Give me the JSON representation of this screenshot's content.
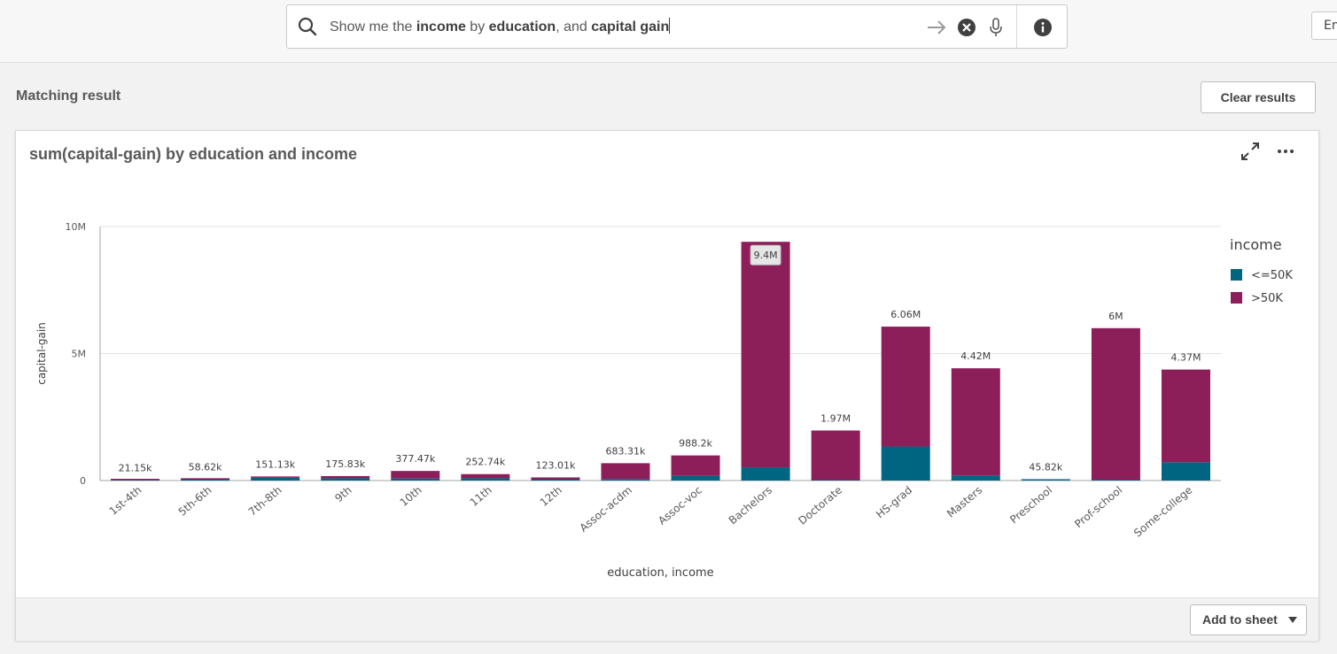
{
  "search": {
    "query_parts": [
      {
        "text": "Show me the ",
        "bold": false
      },
      {
        "text": "income",
        "bold": true
      },
      {
        "text": " by ",
        "bold": false
      },
      {
        "text": "education",
        "bold": true
      },
      {
        "text": ", and ",
        "bold": false
      },
      {
        "text": "capital gain",
        "bold": true
      }
    ]
  },
  "header": {
    "lang_button": "En"
  },
  "results": {
    "title": "Matching result",
    "clear_label": "Clear results"
  },
  "card": {
    "title": "sum(capital-gain) by education and income",
    "add_to_sheet_label": "Add to sheet"
  },
  "colors": {
    "le50k": "#006580",
    "gt50k": "#8c1e5a"
  },
  "chart_data": {
    "type": "bar",
    "stacked": true,
    "title": "sum(capital-gain) by education and income",
    "xlabel": "education, income",
    "ylabel": "capital-gain",
    "ylim": [
      0,
      10000000
    ],
    "yticks": [
      {
        "value": 0,
        "label": "0"
      },
      {
        "value": 5000000,
        "label": "5M"
      },
      {
        "value": 10000000,
        "label": "10M"
      }
    ],
    "grid": true,
    "legend": {
      "title": "income",
      "position": "right"
    },
    "categories": [
      "1st-4th",
      "5th-6th",
      "7th-8th",
      "9th",
      "10th",
      "11th",
      "12th",
      "Assoc-acdm",
      "Assoc-voc",
      "Bachelors",
      "Doctorate",
      "HS-grad",
      "Masters",
      "Preschool",
      "Prof-school",
      "Some-college"
    ],
    "series": [
      {
        "name": "<=50K",
        "values": [
          15000,
          40000,
          110000,
          90000,
          80000,
          90000,
          40000,
          60000,
          180000,
          520000,
          20000,
          1340000,
          200000,
          45820,
          30000,
          720000
        ]
      },
      {
        "name": ">50K",
        "values": [
          6150,
          18620,
          41130,
          85830,
          297470,
          162740,
          83010,
          623310,
          808200,
          8880000,
          1950000,
          4720000,
          4220000,
          0,
          5970000,
          3650000
        ]
      }
    ],
    "totals": [
      "21.15k",
      "58.62k",
      "151.13k",
      "175.83k",
      "377.47k",
      "252.74k",
      "123.01k",
      "683.31k",
      "988.2k",
      "9.4M",
      "1.97M",
      "6.06M",
      "4.42M",
      "45.82k",
      "6M",
      "4.37M"
    ]
  }
}
